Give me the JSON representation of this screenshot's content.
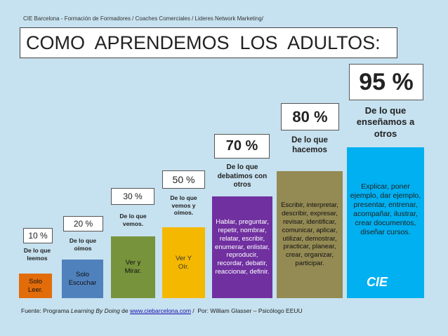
{
  "header": {
    "subtitle": "CIE Barcelona - Formación de Formadores / Coaches Comerciales / Lideres Network Marketing/",
    "title": "COMO  APRENDEMOS  LOS  ADULTOS:"
  },
  "steps": [
    {
      "percent": "10 %",
      "label": "De lo que leemos",
      "text": "Solo Leer."
    },
    {
      "percent": "20 %",
      "label": "De lo que oímos",
      "text": "Solo Escuchar"
    },
    {
      "percent": "30 %",
      "label": "De lo que vemos.",
      "text": "Ver y Mirar."
    },
    {
      "percent": "50 %",
      "label": "De lo que vemos y oímos.",
      "text": "Ver Y Oír."
    },
    {
      "percent": "70 %",
      "label": "De lo que debatimos con otros",
      "text": "Hablar, preguntar, repetir, nombrar, relatar, escribir, enumerar, enlistar, reproducir, recordar, debatir, reaccionar, definir."
    },
    {
      "percent": "80 %",
      "label": "De lo que hacemos",
      "text": "Escribir, interpretar, describir, expresar, revisar, identificar, comunicar, aplicar, utilizar, demostrar, practicar, planear, crear, organizar, participar."
    },
    {
      "percent": "95 %",
      "label": "De lo que enseñamos a otros",
      "text": "Explicar, poner ejemplo, dar ejemplo, presentar, entrenar, acompañar, ilustrar, crear documentos, diseñar cursos."
    }
  ],
  "logo": "CIE",
  "footer": {
    "prefix": "Fuente: Programa ",
    "program": "Learning By Doing",
    "middle": " de ",
    "link": "www.ciebarcelona.com",
    "suffix": " /  Por: William Glasser – Psicólogo EEUU"
  }
}
